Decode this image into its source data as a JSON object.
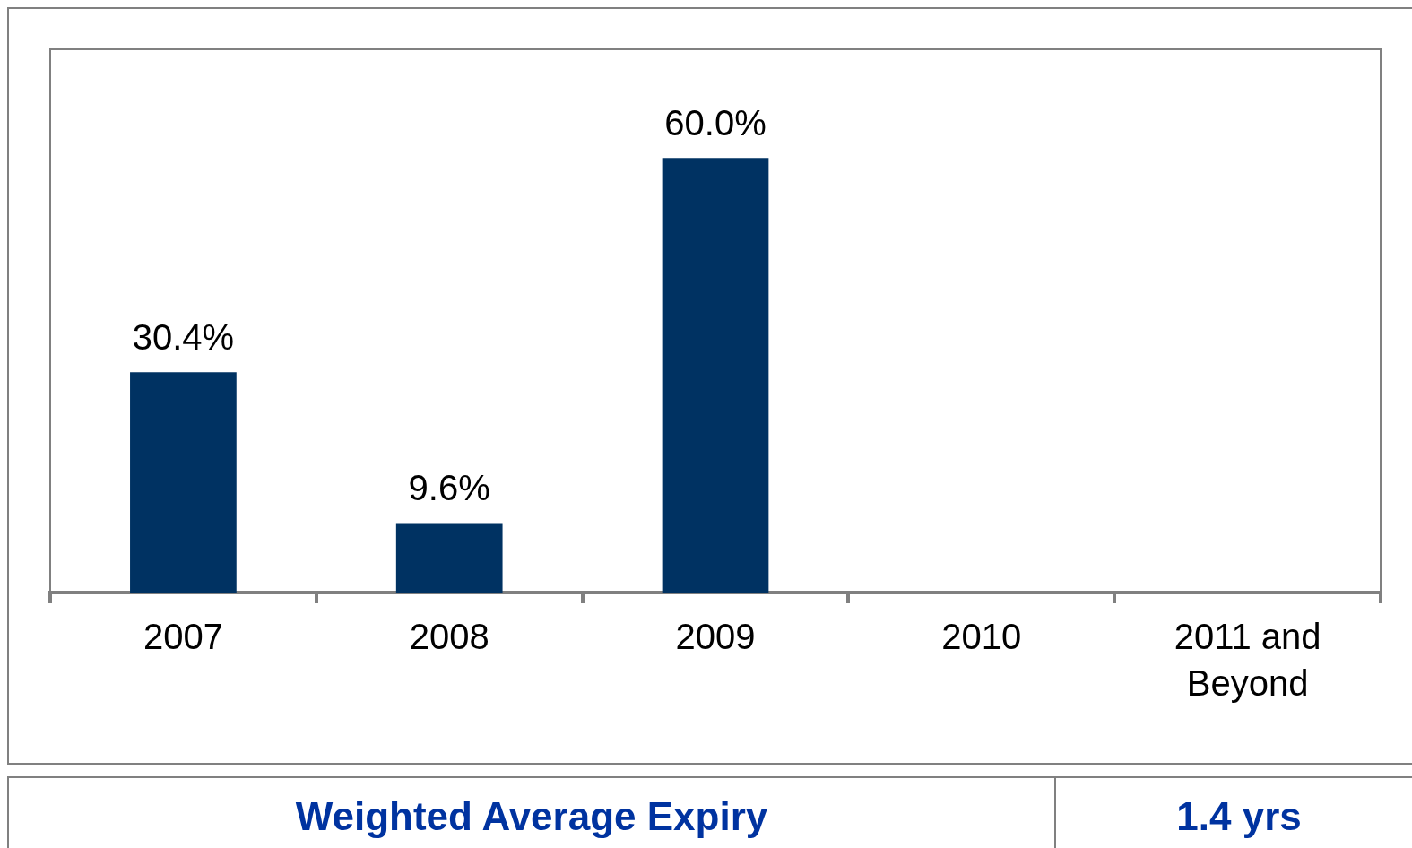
{
  "chart_data": {
    "type": "bar",
    "categories": [
      "2007",
      "2008",
      "2009",
      "2010",
      "2011 and Beyond"
    ],
    "values": [
      30.4,
      9.6,
      60.0,
      null,
      null
    ],
    "color": "#003262",
    "value_labels": [
      "30.4%",
      "9.6%",
      "60.0%",
      null,
      null
    ],
    "ylim": [
      0,
      75
    ],
    "tick_labels": "x",
    "legend": false,
    "annotations": [
      "Weighted Average Expiry",
      "1.4 yrs"
    ]
  }
}
